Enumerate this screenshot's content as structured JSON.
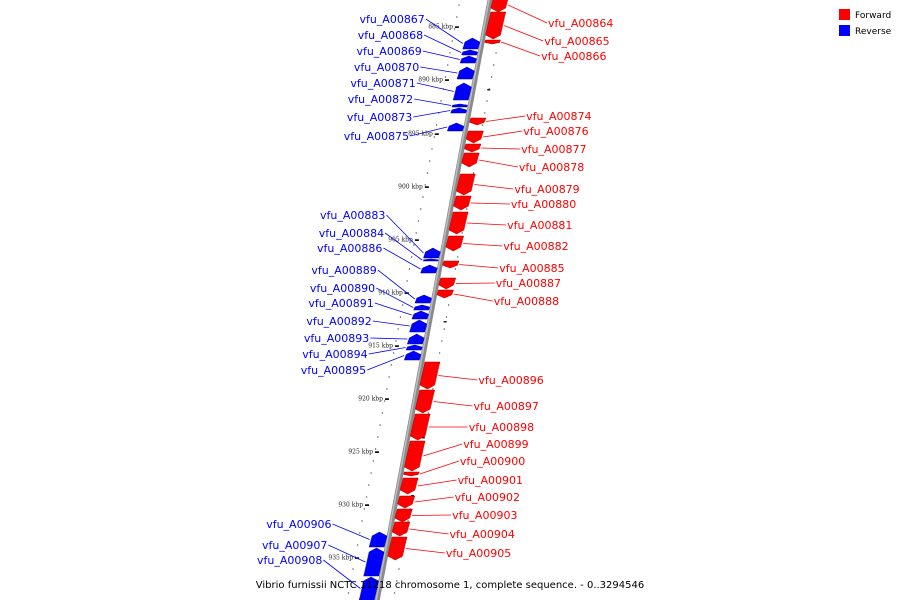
{
  "legend": [
    {
      "label": "Forward",
      "color": "#ff0000"
    },
    {
      "label": "Reverse",
      "color": "#0000ff"
    }
  ],
  "caption": "Vibrio furnissii NCTC 11218 chromosome 1, complete sequence. - 0..3294546",
  "ticks": [
    "885 kbp",
    "890 kbp",
    "895 kbp",
    "900 kbp",
    "905 kbp",
    "910 kbp",
    "915 kbp",
    "920 kbp",
    "925 kbp",
    "930 kbp",
    "935 kbp"
  ],
  "genes_forward": [
    "vfu_A00864",
    "vfu_A00865",
    "vfu_A00866",
    "vfu_A00874",
    "vfu_A00876",
    "vfu_A00877",
    "vfu_A00878",
    "vfu_A00879",
    "vfu_A00880",
    "vfu_A00881",
    "vfu_A00882",
    "vfu_A00885",
    "vfu_A00887",
    "vfu_A00888",
    "vfu_A00896",
    "vfu_A00897",
    "vfu_A00898",
    "vfu_A00899",
    "vfu_A00900",
    "vfu_A00901",
    "vfu_A00902",
    "vfu_A00903",
    "vfu_A00904",
    "vfu_A00905"
  ],
  "genes_reverse": [
    "vfu_A00867",
    "vfu_A00868",
    "vfu_A00869",
    "vfu_A00870",
    "vfu_A00871",
    "vfu_A00872",
    "vfu_A00873",
    "vfu_A00875",
    "vfu_A00883",
    "vfu_A00884",
    "vfu_A00886",
    "vfu_A00889",
    "vfu_A00890",
    "vfu_A00891",
    "vfu_A00892",
    "vfu_A00893",
    "vfu_A00894",
    "vfu_A00895",
    "vfu_A00906",
    "vfu_A00907",
    "vfu_A00908"
  ]
}
